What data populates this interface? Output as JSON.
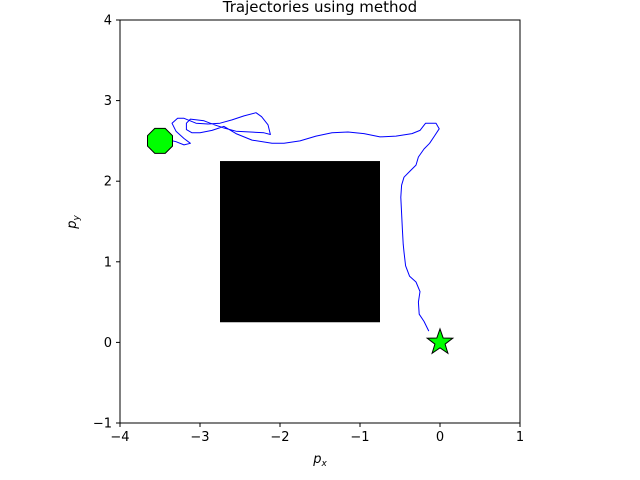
{
  "chart_data": {
    "type": "line",
    "title": "Trajectories using method",
    "xlabel": "p",
    "xlabel_sub": "x",
    "ylabel": "p",
    "ylabel_sub": "y",
    "xlim": [
      -4,
      1
    ],
    "ylim": [
      -1,
      4
    ],
    "xticks": [
      -4,
      -3,
      -2,
      -1,
      0,
      1
    ],
    "yticks": [
      -1,
      0,
      1,
      2,
      3,
      4
    ],
    "xtick_labels": [
      "−4",
      "−3",
      "−2",
      "−1",
      "0",
      "1"
    ],
    "ytick_labels": [
      "−1",
      "0",
      "1",
      "2",
      "3",
      "4"
    ],
    "grid": false,
    "series": [
      {
        "color": "#0000ff",
        "points": [
          [
            -0.14,
            0.14
          ],
          [
            -0.2,
            0.26
          ],
          [
            -0.26,
            0.35
          ],
          [
            -0.27,
            0.5
          ],
          [
            -0.25,
            0.63
          ],
          [
            -0.3,
            0.75
          ],
          [
            -0.38,
            0.82
          ],
          [
            -0.43,
            0.95
          ],
          [
            -0.45,
            1.12
          ],
          [
            -0.46,
            1.22
          ],
          [
            -0.47,
            1.4
          ],
          [
            -0.48,
            1.6
          ],
          [
            -0.49,
            1.8
          ],
          [
            -0.48,
            1.95
          ],
          [
            -0.45,
            2.05
          ],
          [
            -0.38,
            2.12
          ],
          [
            -0.3,
            2.2
          ],
          [
            -0.27,
            2.3
          ],
          [
            -0.2,
            2.4
          ],
          [
            -0.13,
            2.47
          ],
          [
            -0.07,
            2.56
          ],
          [
            -0.01,
            2.65
          ],
          [
            -0.05,
            2.72
          ],
          [
            -0.18,
            2.72
          ],
          [
            -0.25,
            2.63
          ],
          [
            -0.35,
            2.59
          ],
          [
            -0.55,
            2.56
          ],
          [
            -0.75,
            2.55
          ],
          [
            -0.95,
            2.59
          ],
          [
            -1.15,
            2.61
          ],
          [
            -1.35,
            2.6
          ],
          [
            -1.55,
            2.56
          ],
          [
            -1.75,
            2.5
          ],
          [
            -1.95,
            2.47
          ],
          [
            -2.1,
            2.47
          ],
          [
            -2.35,
            2.51
          ],
          [
            -2.55,
            2.59
          ],
          [
            -2.7,
            2.68
          ],
          [
            -2.85,
            2.63
          ],
          [
            -3.0,
            2.6
          ],
          [
            -3.1,
            2.6
          ],
          [
            -3.17,
            2.64
          ],
          [
            -3.17,
            2.72
          ],
          [
            -3.12,
            2.77
          ],
          [
            -2.95,
            2.75
          ],
          [
            -2.82,
            2.7
          ],
          [
            -2.7,
            2.66
          ],
          [
            -2.55,
            2.62
          ],
          [
            -2.37,
            2.61
          ],
          [
            -2.2,
            2.6
          ],
          [
            -2.12,
            2.58
          ],
          [
            -2.15,
            2.7
          ],
          [
            -2.23,
            2.8
          ],
          [
            -2.3,
            2.85
          ],
          [
            -2.45,
            2.81
          ],
          [
            -2.6,
            2.76
          ],
          [
            -2.75,
            2.72
          ],
          [
            -2.9,
            2.71
          ],
          [
            -3.05,
            2.72
          ],
          [
            -3.2,
            2.78
          ],
          [
            -3.28,
            2.78
          ],
          [
            -3.35,
            2.72
          ],
          [
            -3.3,
            2.62
          ],
          [
            -3.2,
            2.53
          ],
          [
            -3.12,
            2.47
          ],
          [
            -3.2,
            2.45
          ],
          [
            -3.3,
            2.49
          ],
          [
            -3.38,
            2.51
          ],
          [
            -3.45,
            2.5
          ]
        ]
      }
    ],
    "obstacle": {
      "color": "#000000",
      "x": [
        -2.75,
        -0.75
      ],
      "y": [
        0.25,
        2.25
      ]
    },
    "start": {
      "shape": "octagon",
      "color": "#00ff00",
      "x": -3.5,
      "y": 2.5
    },
    "goal": {
      "shape": "star",
      "color": "#00ff00",
      "x": 0.0,
      "y": 0.0
    }
  }
}
